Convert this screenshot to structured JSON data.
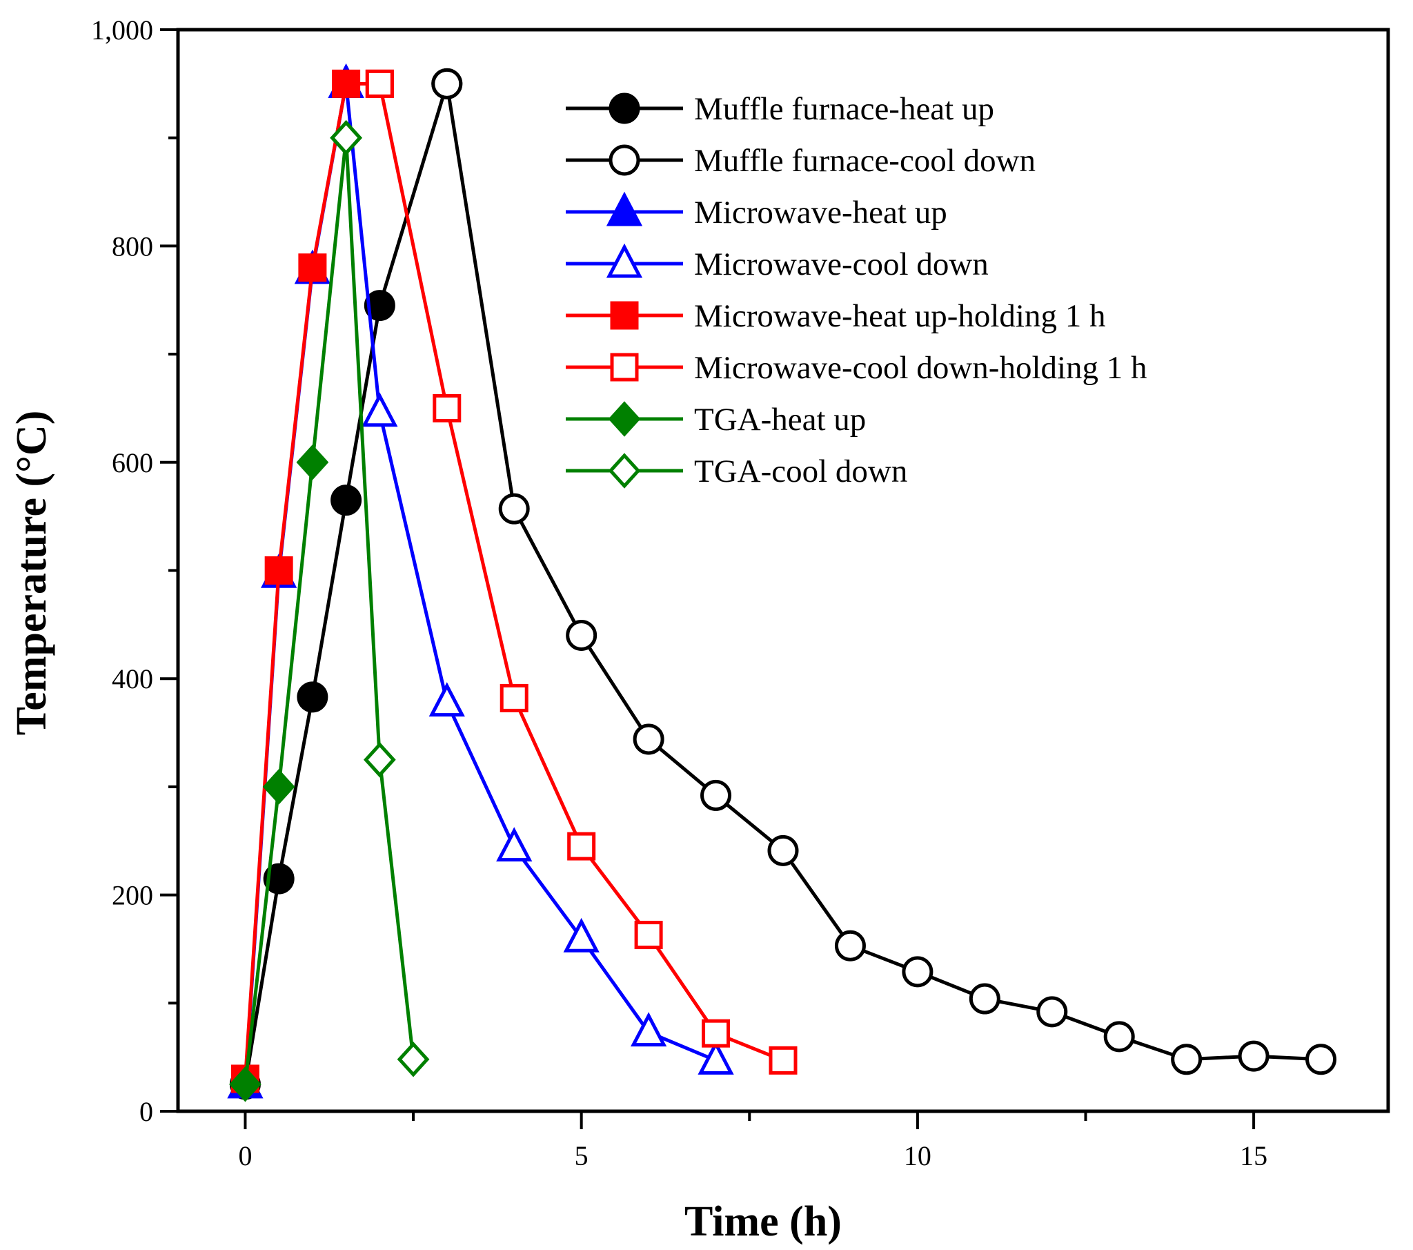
{
  "chart_data": {
    "type": "line",
    "title": "",
    "xlabel": "Time (h)",
    "ylabel": "Temperature (°C)",
    "xlim": [
      -1,
      17
    ],
    "ylim": [
      0,
      1000
    ],
    "xticks": [
      0,
      5,
      10,
      15
    ],
    "xtick_labels": [
      "0",
      "5",
      "10",
      "15"
    ],
    "x_minor_ticks": [
      2.5,
      7.5,
      12.5
    ],
    "yticks": [
      0,
      200,
      400,
      600,
      800,
      1000
    ],
    "ytick_labels": [
      "0",
      "200",
      "400",
      "600",
      "800",
      "1,000"
    ],
    "y_minor_ticks": [
      100,
      300,
      500,
      700,
      900
    ],
    "grid": false,
    "legend_position": "top-right",
    "series": [
      {
        "name": "Muffle furnace-heat up",
        "color": "#000000",
        "marker": "circle",
        "filled": true,
        "x": [
          0,
          0.5,
          1,
          1.5,
          2,
          3
        ],
        "y": [
          25,
          215,
          383,
          565,
          745,
          950
        ]
      },
      {
        "name": "Muffle furnace-cool down",
        "color": "#000000",
        "marker": "circle",
        "filled": false,
        "x": [
          3,
          4,
          5,
          6,
          7,
          8,
          9,
          10,
          11,
          12,
          13,
          14,
          15,
          16
        ],
        "y": [
          950,
          557,
          440,
          344,
          292,
          241,
          153,
          129,
          104,
          92,
          69,
          48,
          51,
          48
        ]
      },
      {
        "name": "Microwave-heat up",
        "color": "#0000ff",
        "marker": "triangle",
        "filled": true,
        "x": [
          0,
          0.5,
          1,
          1.5
        ],
        "y": [
          25,
          497,
          778,
          950
        ]
      },
      {
        "name": "Microwave-cool down",
        "color": "#0000ff",
        "marker": "triangle",
        "filled": false,
        "x": [
          1.5,
          2,
          3,
          4,
          5,
          6,
          7
        ],
        "y": [
          950,
          646,
          378,
          244,
          160,
          73,
          47
        ]
      },
      {
        "name": "Microwave-heat up-holding 1 h",
        "color": "#ff0000",
        "marker": "square",
        "filled": true,
        "x": [
          0,
          0.5,
          1,
          1.5,
          2
        ],
        "y": [
          30,
          500,
          780,
          950,
          950
        ]
      },
      {
        "name": "Microwave-cool down-holding 1 h",
        "color": "#ff0000",
        "marker": "square",
        "filled": false,
        "x": [
          2,
          3,
          4,
          5,
          6,
          7,
          8
        ],
        "y": [
          950,
          650,
          382,
          245,
          163,
          72,
          47
        ]
      },
      {
        "name": "TGA-heat up",
        "color": "#008000",
        "marker": "diamond",
        "filled": true,
        "x": [
          0,
          0.5,
          1,
          1.5
        ],
        "y": [
          25,
          300,
          600,
          900
        ]
      },
      {
        "name": "TGA-cool down",
        "color": "#008000",
        "marker": "diamond",
        "filled": false,
        "x": [
          1.5,
          2,
          2.5
        ],
        "y": [
          900,
          325,
          48
        ]
      }
    ]
  }
}
